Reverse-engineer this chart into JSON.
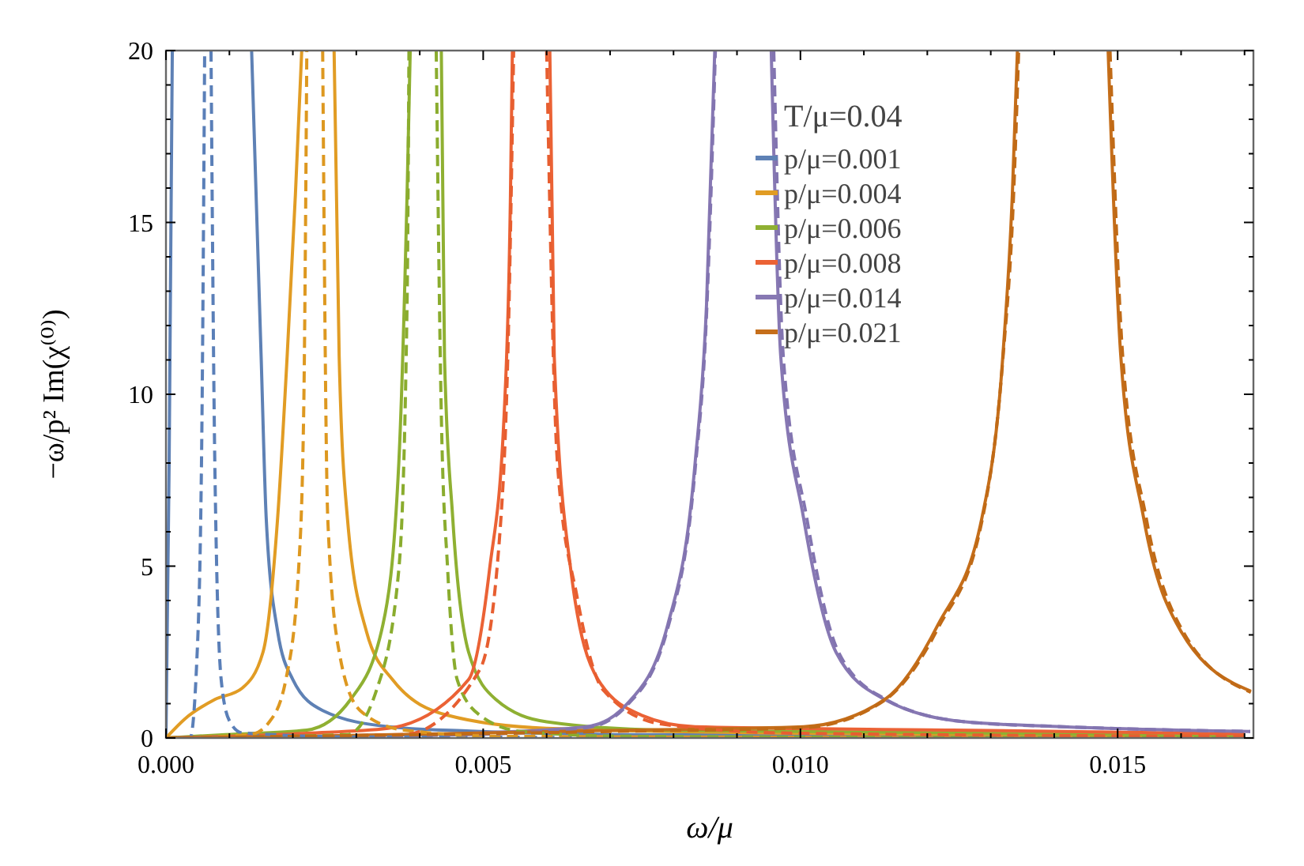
{
  "chart_data": {
    "type": "line",
    "xlabel": "ω/μ",
    "ylabel": "−ω/p² Im(χ⁽⁰⁾)",
    "legend_title": "T/μ=0.04",
    "legend": "top right",
    "xlim": [
      0,
      0.01714
    ],
    "ylim": [
      0,
      20
    ],
    "xticks": [
      {
        "value": 0,
        "label": "0.000"
      },
      {
        "value": 0.001,
        "label": null
      },
      {
        "value": 0.002,
        "label": null
      },
      {
        "value": 0.003,
        "label": null
      },
      {
        "value": 0.004,
        "label": null
      },
      {
        "value": 0.005,
        "label": "0.005"
      },
      {
        "value": 0.006,
        "label": null
      },
      {
        "value": 0.007,
        "label": null
      },
      {
        "value": 0.008,
        "label": null
      },
      {
        "value": 0.009,
        "label": null
      },
      {
        "value": 0.01,
        "label": "0.010"
      },
      {
        "value": 0.011,
        "label": null
      },
      {
        "value": 0.012,
        "label": null
      },
      {
        "value": 0.013,
        "label": null
      },
      {
        "value": 0.014,
        "label": null
      },
      {
        "value": 0.015,
        "label": "0.015"
      },
      {
        "value": 0.016,
        "label": null
      },
      {
        "value": 0.017,
        "label": null
      }
    ],
    "yticks": [
      0,
      {
        "value": 1,
        "label": null
      },
      {
        "value": 2,
        "label": null
      },
      {
        "value": 3,
        "label": null
      },
      {
        "value": 4,
        "label": null
      },
      5,
      {
        "value": 6,
        "label": null
      },
      {
        "value": 7,
        "label": null
      },
      {
        "value": 8,
        "label": null
      },
      {
        "value": 9,
        "label": null
      },
      10,
      {
        "value": 11,
        "label": null
      },
      {
        "value": 12,
        "label": null
      },
      {
        "value": 13,
        "label": null
      },
      {
        "value": 14,
        "label": null
      },
      15,
      {
        "value": 16,
        "label": null
      },
      {
        "value": 17,
        "label": null
      },
      {
        "value": 18,
        "label": null
      },
      {
        "value": 19,
        "label": null
      },
      20
    ],
    "series": [
      {
        "name": "p/μ=0.001",
        "color": "#5e81b5",
        "line_style": "solid",
        "x": [
          0,
          5e-05,
          0.0001,
          0.0007,
          0.00135,
          0.0015,
          0.00158,
          0.00176,
          0.002,
          0.00247,
          0.0035,
          0.0048,
          0.0073,
          0.017
        ],
        "values": [
          0,
          8,
          20,
          null,
          20,
          11.1,
          6.4,
          3.1,
          1.7,
          0.8,
          0.33,
          0.2,
          0.1,
          0.05
        ]
      },
      {
        "name": "p/μ=0.004",
        "color": "#e19c24",
        "line_style": "solid",
        "x": [
          0,
          0.0003,
          0.00077,
          0.0012,
          0.00153,
          0.00176,
          0.00191,
          0.00204,
          0.00214,
          0.0024,
          0.00265,
          0.00273,
          0.00286,
          0.00316,
          0.00357,
          0.00444,
          0.006,
          0.0099,
          0.017
        ],
        "values": [
          0,
          0.56,
          1.12,
          1.45,
          2.5,
          6.4,
          11.1,
          15.8,
          20,
          null,
          20,
          11.1,
          6.4,
          3.1,
          1.7,
          0.66,
          0.28,
          0.14,
          0.05
        ]
      },
      {
        "name": "p/μ=0.006",
        "color": "#8fb032",
        "line_style": "solid",
        "x": [
          0,
          0.00094,
          0.00222,
          0.00291,
          0.00342,
          0.00367,
          0.0038,
          0.00385,
          0.0041,
          0.00434,
          0.00439,
          0.00452,
          0.00477,
          0.0052,
          0.006,
          0.0078,
          0.017
        ],
        "values": [
          0,
          0.1,
          0.23,
          1.12,
          3.3,
          8,
          15.8,
          20,
          null,
          20,
          11.1,
          6.4,
          2.5,
          1.12,
          0.47,
          0.23,
          0.07
        ]
      },
      {
        "name": "p/μ=0.008",
        "color": "#eb6235",
        "line_style": "solid",
        "x": [
          0,
          0.00222,
          0.0035,
          0.00477,
          0.0051,
          0.00533,
          0.00543,
          0.00546,
          0.0058,
          0.00605,
          0.00612,
          0.00638,
          0.00681,
          0.0075,
          0.00834,
          0.0124,
          0.017
        ],
        "values": [
          0,
          0.14,
          0.28,
          1.7,
          4.9,
          9.4,
          15.8,
          20,
          null,
          20,
          11.1,
          4.9,
          1.7,
          0.66,
          0.33,
          0.23,
          0.12
        ]
      },
      {
        "name": "p/μ=0.014",
        "color": "#8778b3",
        "line_style": "solid",
        "x": [
          0,
          0.00222,
          0.00477,
          0.00663,
          0.00724,
          0.00791,
          0.00834,
          0.00852,
          0.00865,
          0.0091,
          0.00954,
          0.00969,
          0.01005,
          0.01056,
          0.01133,
          0.0126,
          0.01413,
          0.01709
        ],
        "values": [
          0,
          0.05,
          0.14,
          0.33,
          0.94,
          3.3,
          8,
          12.6,
          20,
          null,
          20,
          11.1,
          6.4,
          2.5,
          1.12,
          0.47,
          0.33,
          0.19
        ]
      },
      {
        "name": "p/μ=0.021",
        "color": "#c56e1a",
        "line_style": "solid",
        "x": [
          0,
          0.00222,
          0.00477,
          0.0073,
          0.01005,
          0.01133,
          0.01217,
          0.01286,
          0.01319,
          0.01334,
          0.01342,
          0.0141,
          0.01485,
          0.01505,
          0.01541,
          0.016,
          0.0171
        ],
        "values": [
          0,
          0.05,
          0.14,
          0.23,
          0.33,
          1.12,
          3.3,
          6.4,
          11.1,
          15.8,
          20,
          null,
          20,
          11.1,
          6.4,
          3.1,
          1.36
        ]
      },
      {
        "color": "#5a7fb8",
        "line_style": "dashed",
        "x": [
          0,
          0.00038,
          0.00048,
          0.00056,
          0.00061,
          0.00066,
          0.00071,
          0.00077,
          0.00087,
          0.001,
          0.0012,
          0.003,
          0.017
        ],
        "values": [
          0,
          0,
          2,
          8,
          20,
          null,
          20,
          8,
          1.7,
          0.5,
          0.15,
          0.03,
          0
        ]
      },
      {
        "color": "#dd9820",
        "line_style": "dashed",
        "x": [
          0,
          0.00133,
          0.00163,
          0.00189,
          0.00209,
          0.00217,
          0.00222,
          0.0023,
          0.00247,
          0.00255,
          0.00273,
          0.00306,
          0.00375,
          0.0053,
          0.017
        ],
        "values": [
          0,
          0.1,
          0.47,
          1.7,
          4.9,
          9.4,
          20,
          null,
          20,
          6.4,
          2.5,
          0.8,
          0.23,
          0.05,
          0
        ]
      },
      {
        "color": "#8aac2e",
        "line_style": "dashed",
        "x": [
          0,
          0.00286,
          0.00332,
          0.00367,
          0.0038,
          0.00383,
          0.004,
          0.00426,
          0.00434,
          0.00444,
          0.00459,
          0.00495,
          0.00561,
          0.0073,
          0.017
        ],
        "values": [
          0,
          0.1,
          1.4,
          4.9,
          12.6,
          20,
          null,
          20,
          9.4,
          4.9,
          1.7,
          0.66,
          0.19,
          0.05,
          0
        ]
      },
      {
        "color": "#e75e30",
        "line_style": "dashed",
        "x": [
          0,
          0.00375,
          0.00495,
          0.00528,
          0.0054,
          0.00548,
          0.0058,
          0.006,
          0.00617,
          0.00648,
          0.00689,
          0.00783,
          0.0099,
          0.017
        ],
        "values": [
          0,
          0.1,
          2,
          6.4,
          12,
          20,
          null,
          20,
          8,
          4.1,
          1.4,
          0.4,
          0.14,
          0.05
        ]
      },
      {
        "color": "#8274b0",
        "line_style": "dashed",
        "x": [
          0,
          0.00477,
          0.00663,
          0.00724,
          0.00791,
          0.00834,
          0.00852,
          0.00866,
          0.0091,
          0.00958,
          0.00973,
          0.0101,
          0.0106,
          0.01135,
          0.0126,
          0.01413,
          0.01709
        ],
        "values": [
          0,
          0.1,
          0.3,
          0.9,
          3.2,
          7.8,
          12.3,
          20,
          null,
          20,
          11.1,
          6.4,
          2.5,
          1.12,
          0.47,
          0.33,
          0.19
        ]
      },
      {
        "color": "#c06a16",
        "line_style": "dashed",
        "x": [
          0,
          0.00477,
          0.0073,
          0.01005,
          0.01133,
          0.01217,
          0.01286,
          0.01319,
          0.01336,
          0.01344,
          0.0141,
          0.01488,
          0.01508,
          0.01545,
          0.01603,
          0.0171
        ],
        "values": [
          0,
          0.12,
          0.2,
          0.3,
          1.1,
          3.2,
          6.3,
          11,
          15.8,
          20,
          null,
          20,
          11.1,
          6.4,
          3.1,
          1.33
        ]
      }
    ]
  }
}
